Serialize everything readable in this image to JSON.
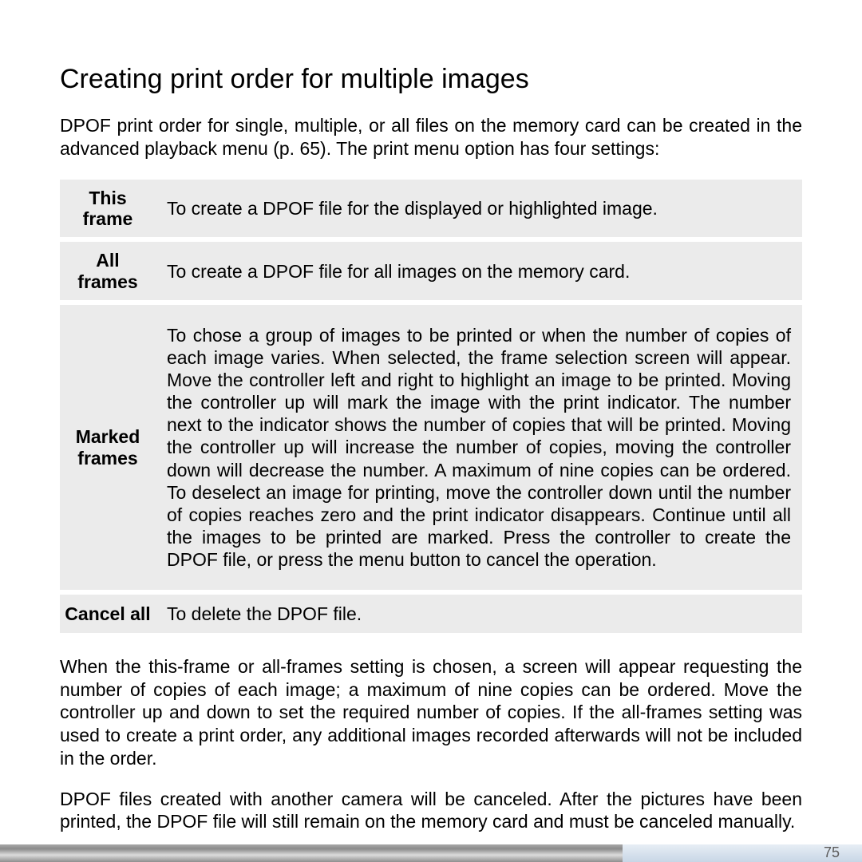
{
  "heading": "Creating print order for multiple images",
  "intro": "DPOF print order for single, multiple, or all files on the memory card can be created in the advanced playback menu (p. 65). The print menu option has four settings:",
  "rows": [
    {
      "label": "This frame",
      "desc": "To create a DPOF file for the displayed or highlighted image.",
      "big": false
    },
    {
      "label": "All frames",
      "desc": "To create a DPOF file for all images on the memory card.",
      "big": false
    },
    {
      "label": "Marked frames",
      "desc": "To chose a group of images to be printed or when the number of copies of each image varies. When selected, the frame selection screen will appear. Move the controller left and right to highlight an image to be printed. Moving the controller up will mark the image with the print indicator. The number next to the indicator shows the number of copies that will be printed. Moving the controller up will increase the number of copies, moving the controller down will decrease the number. A maximum of nine copies can be ordered. To deselect an image for printing, move the controller down until the number of copies reaches zero and the print indicator disappears. Continue until all the images to be printed are marked. Press the controller to create the DPOF file, or press the menu button to cancel the operation.",
      "big": true
    },
    {
      "label": "Cancel all",
      "desc": "To delete the DPOF file.",
      "big": false
    }
  ],
  "para1": "When the this-frame or all-frames setting is chosen, a screen will appear requesting the number of copies of each image; a maximum of nine copies can be ordered. Move the controller up and down to set the required number of copies. If the all-frames setting was used to create a print order, any additional images recorded afterwards will not be included in the order.",
  "para2": "DPOF files created with another camera will be canceled. After the pictures have been printed, the DPOF file will still remain on the memory card and must be canceled manually.",
  "page_number": "75",
  "colors": {
    "row_bg": "#ebebeb",
    "text": "#000000",
    "page_num": "#5b5b5b"
  }
}
